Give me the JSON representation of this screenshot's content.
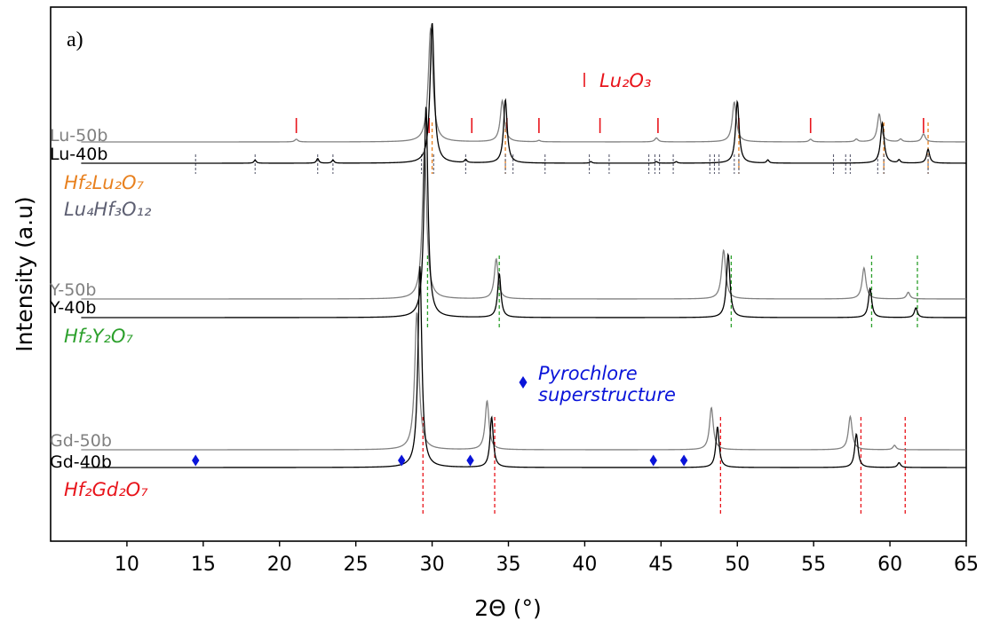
{
  "chart_data": {
    "type": "line",
    "panel_label": "a)",
    "xlabel": "2Θ (°)",
    "ylabel": "Intensity (a.u)",
    "xlim": [
      5,
      65
    ],
    "xticks": [
      10,
      15,
      20,
      25,
      30,
      35,
      40,
      45,
      50,
      55,
      60,
      65
    ],
    "grid": false,
    "colors": {
      "black": "#000000",
      "gray": "#808080",
      "red": "#e8141b",
      "orange": "#e8801e",
      "slate": "#5d5f72",
      "green": "#2ca02c",
      "blue": "#0a14d9"
    },
    "series": [
      {
        "name": "Lu-50b",
        "color": "#808080",
        "baseline": 0.28,
        "peaks": [
          [
            21.1,
            0.02,
            0.12
          ],
          [
            29.9,
            0.85,
            0.18
          ],
          [
            34.6,
            0.31,
            0.16
          ],
          [
            37.0,
            0.01,
            0.12
          ],
          [
            44.7,
            0.03,
            0.13
          ],
          [
            49.8,
            0.3,
            0.16
          ],
          [
            54.8,
            0.02,
            0.12
          ],
          [
            57.8,
            0.02,
            0.12
          ],
          [
            59.3,
            0.21,
            0.15
          ],
          [
            60.7,
            0.02,
            0.12
          ],
          [
            62.2,
            0.06,
            0.14
          ]
        ]
      },
      {
        "name": "Lu-40b",
        "color": "#000000",
        "baseline": 0.24,
        "peaks": [
          [
            18.4,
            0.02,
            0.09
          ],
          [
            22.5,
            0.03,
            0.09
          ],
          [
            23.5,
            0.02,
            0.09
          ],
          [
            30.0,
            0.91,
            0.16
          ],
          [
            32.2,
            0.02,
            0.09
          ],
          [
            34.8,
            0.41,
            0.14
          ],
          [
            40.4,
            0.01,
            0.09
          ],
          [
            44.7,
            0.01,
            0.09
          ],
          [
            46.0,
            0.01,
            0.09
          ],
          [
            50.0,
            0.4,
            0.14
          ],
          [
            52.0,
            0.02,
            0.09
          ],
          [
            59.5,
            0.26,
            0.14
          ],
          [
            60.6,
            0.02,
            0.09
          ],
          [
            62.5,
            0.09,
            0.12
          ]
        ]
      },
      {
        "name": "Y-50b",
        "color": "#808080",
        "baseline": 0.1,
        "peaks": [
          [
            29.5,
            0.68,
            0.17
          ],
          [
            34.2,
            0.18,
            0.15
          ],
          [
            49.1,
            0.22,
            0.16
          ],
          [
            58.3,
            0.14,
            0.15
          ],
          [
            61.2,
            0.03,
            0.13
          ]
        ]
      },
      {
        "name": "Y-40b",
        "color": "#000000",
        "baseline": 0.06,
        "peaks": [
          [
            29.6,
            0.87,
            0.15
          ],
          [
            34.4,
            0.18,
            0.13
          ],
          [
            49.4,
            0.26,
            0.14
          ],
          [
            58.7,
            0.12,
            0.13
          ],
          [
            61.7,
            0.04,
            0.12
          ]
        ]
      },
      {
        "name": "Gd-50b",
        "color": "#808080",
        "baseline": 0.14,
        "peaks": [
          [
            29.0,
            0.62,
            0.17
          ],
          [
            33.6,
            0.22,
            0.15
          ],
          [
            48.3,
            0.19,
            0.15
          ],
          [
            57.4,
            0.15,
            0.15
          ],
          [
            60.3,
            0.02,
            0.12
          ]
        ]
      },
      {
        "name": "Gd-40b",
        "color": "#000000",
        "baseline": 0.1,
        "peaks": [
          [
            29.2,
            0.84,
            0.15
          ],
          [
            33.9,
            0.21,
            0.13
          ],
          [
            48.7,
            0.17,
            0.13
          ],
          [
            57.8,
            0.14,
            0.13
          ],
          [
            60.6,
            0.02,
            0.12
          ]
        ]
      }
    ],
    "phases": [
      {
        "name": "Lu₂O₃",
        "color": "#e8141b",
        "positions": [
          21.1,
          29.8,
          32.6,
          34.9,
          37.0,
          41.0,
          44.8,
          50.1,
          54.8,
          62.2
        ]
      },
      {
        "name": "Hf₂Lu₂O₇",
        "color": "#e8801e",
        "positions": [
          30.0,
          34.8,
          50.1,
          59.6,
          62.5
        ]
      },
      {
        "name": "Lu₄Hf₃O₁₂",
        "color": "#5d5f72",
        "positions": [
          14.5,
          18.4,
          22.5,
          23.5,
          29.3,
          30.1,
          32.2,
          34.8,
          35.3,
          37.4,
          40.3,
          41.6,
          44.2,
          44.6,
          44.9,
          45.8,
          48.2,
          48.5,
          48.8,
          49.8,
          50.1,
          56.3,
          57.1,
          57.4,
          59.2,
          59.6,
          62.5
        ]
      },
      {
        "name": "Hf₂Y₂O₇",
        "color": "#2ca02c",
        "positions": [
          29.7,
          34.4,
          49.6,
          58.8,
          61.8
        ]
      },
      {
        "name": "Hf₂Gd₂O₇",
        "color": "#e8141b",
        "positions": [
          29.4,
          34.1,
          48.9,
          58.1,
          61.0
        ]
      }
    ],
    "superstructure": {
      "name": "Pyrochlore superstructure",
      "name_line1": "Pyrochlore",
      "name_line2": "superstructure",
      "marker": "diamond",
      "color": "#0a14d9",
      "positions": [
        14.5,
        28.0,
        32.5,
        44.5,
        46.5
      ]
    }
  }
}
